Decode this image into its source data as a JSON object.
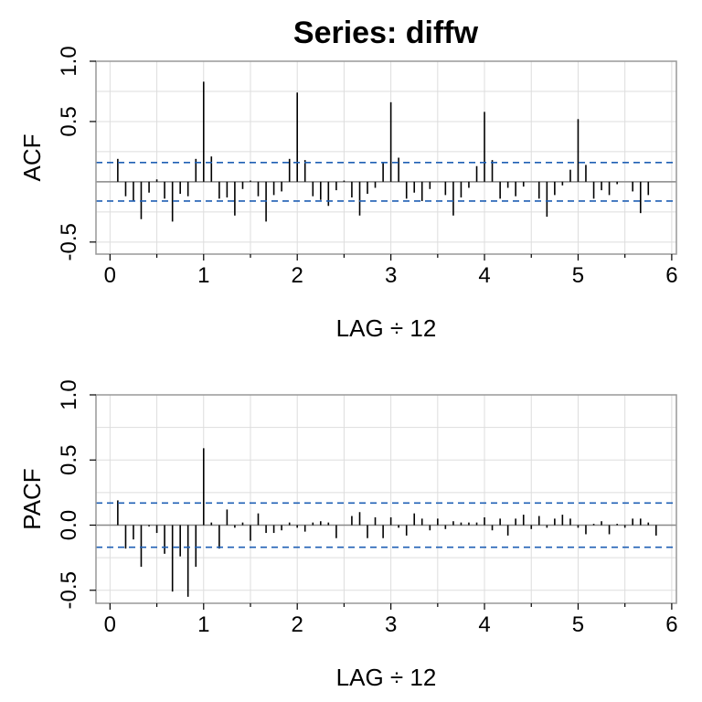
{
  "title": "Series:  diffw",
  "style": {
    "bar_color": "#000000",
    "band_color": "#1f5fb4",
    "grid_color": "#dddddd",
    "zero_color": "#888888",
    "box_color": "#999999"
  },
  "chart_data": [
    {
      "type": "bar",
      "panel": "acf",
      "xlabel": "LAG ÷ 12",
      "ylabel": "ACF",
      "xlim": [
        -0.15,
        6.05
      ],
      "ylim": [
        -0.6,
        1.0
      ],
      "xticks": [
        0,
        1,
        2,
        3,
        4,
        5,
        6
      ],
      "yticks": [
        -0.5,
        0.5,
        1.0
      ],
      "ytick_labels": [
        "-0.5",
        "0.5",
        "1.0"
      ],
      "minor_xticks": [
        0.5,
        1.5,
        2.5,
        3.5,
        4.5,
        5.5
      ],
      "grid": true,
      "conf_band": [
        -0.16,
        0.16
      ],
      "x": [
        0.083,
        0.167,
        0.25,
        0.333,
        0.417,
        0.5,
        0.583,
        0.667,
        0.75,
        0.833,
        0.917,
        1.0,
        1.083,
        1.167,
        1.25,
        1.333,
        1.417,
        1.5,
        1.583,
        1.667,
        1.75,
        1.833,
        1.917,
        2.0,
        2.083,
        2.167,
        2.25,
        2.333,
        2.417,
        2.5,
        2.583,
        2.667,
        2.75,
        2.833,
        2.917,
        3.0,
        3.083,
        3.167,
        3.25,
        3.333,
        3.417,
        3.5,
        3.583,
        3.667,
        3.75,
        3.833,
        3.917,
        4.0,
        4.083,
        4.167,
        4.25,
        4.333,
        4.417,
        4.5,
        4.583,
        4.667,
        4.75,
        4.833,
        4.917,
        5.0,
        5.083,
        5.167,
        5.25,
        5.333,
        5.417,
        5.5,
        5.583,
        5.667,
        5.75
      ],
      "values": [
        0.19,
        -0.12,
        -0.16,
        -0.31,
        -0.09,
        0.02,
        -0.14,
        -0.33,
        -0.1,
        -0.12,
        0.19,
        0.83,
        0.21,
        -0.14,
        -0.13,
        -0.28,
        -0.06,
        0.01,
        -0.12,
        -0.33,
        -0.11,
        -0.08,
        0.19,
        0.74,
        0.18,
        -0.12,
        -0.15,
        -0.2,
        -0.07,
        0.01,
        -0.13,
        -0.28,
        -0.1,
        -0.05,
        0.16,
        0.66,
        0.2,
        -0.14,
        -0.09,
        -0.16,
        -0.06,
        0.0,
        -0.11,
        -0.28,
        -0.13,
        -0.05,
        0.13,
        0.58,
        0.18,
        -0.14,
        -0.05,
        -0.12,
        -0.04,
        0.0,
        -0.14,
        -0.29,
        -0.11,
        -0.03,
        0.1,
        0.52,
        0.14,
        -0.14,
        -0.07,
        -0.11,
        -0.02,
        0.0,
        -0.08,
        -0.26,
        -0.11
      ]
    },
    {
      "type": "bar",
      "panel": "pacf",
      "xlabel": "LAG ÷ 12",
      "ylabel": "PACF",
      "xlim": [
        -0.15,
        6.05
      ],
      "ylim": [
        -0.6,
        1.0
      ],
      "xticks": [
        0,
        1,
        2,
        3,
        4,
        5,
        6
      ],
      "yticks": [
        -0.5,
        0.0,
        0.5,
        1.0
      ],
      "ytick_labels": [
        "-0.5",
        "0.0",
        "0.5",
        "1.0"
      ],
      "minor_xticks": [
        0.5,
        1.5,
        2.5,
        3.5,
        4.5,
        5.5
      ],
      "grid": true,
      "conf_band": [
        -0.17,
        0.17
      ],
      "x": [
        0.083,
        0.167,
        0.25,
        0.333,
        0.417,
        0.5,
        0.583,
        0.667,
        0.75,
        0.833,
        0.917,
        1.0,
        1.083,
        1.167,
        1.25,
        1.333,
        1.417,
        1.5,
        1.583,
        1.667,
        1.75,
        1.833,
        1.917,
        2.0,
        2.083,
        2.167,
        2.25,
        2.333,
        2.417,
        2.5,
        2.583,
        2.667,
        2.75,
        2.833,
        2.917,
        3.0,
        3.083,
        3.167,
        3.25,
        3.333,
        3.417,
        3.5,
        3.583,
        3.667,
        3.75,
        3.833,
        3.917,
        4.0,
        4.083,
        4.167,
        4.25,
        4.333,
        4.417,
        4.5,
        4.583,
        4.667,
        4.75,
        4.833,
        4.917,
        5.0,
        5.083,
        5.167,
        5.25,
        5.333,
        5.417,
        5.5,
        5.583,
        5.667,
        5.75,
        5.833
      ],
      "values": [
        0.19,
        -0.18,
        -0.11,
        -0.32,
        -0.01,
        -0.06,
        -0.22,
        -0.51,
        -0.24,
        -0.55,
        -0.32,
        0.59,
        0.02,
        -0.18,
        0.12,
        -0.02,
        0.02,
        -0.12,
        0.09,
        -0.06,
        -0.06,
        -0.04,
        0.02,
        -0.02,
        -0.05,
        0.02,
        0.03,
        0.02,
        -0.1,
        0.0,
        0.07,
        0.1,
        -0.1,
        0.06,
        -0.1,
        0.06,
        -0.02,
        -0.08,
        0.09,
        0.05,
        -0.04,
        0.05,
        -0.03,
        0.03,
        0.02,
        0.02,
        0.02,
        0.06,
        -0.04,
        0.05,
        -0.08,
        0.05,
        0.08,
        -0.03,
        0.07,
        -0.02,
        0.05,
        0.08,
        0.05,
        -0.02,
        -0.07,
        0.01,
        0.03,
        -0.07,
        0.01,
        -0.02,
        0.05,
        0.05,
        0.02,
        -0.08
      ]
    }
  ]
}
